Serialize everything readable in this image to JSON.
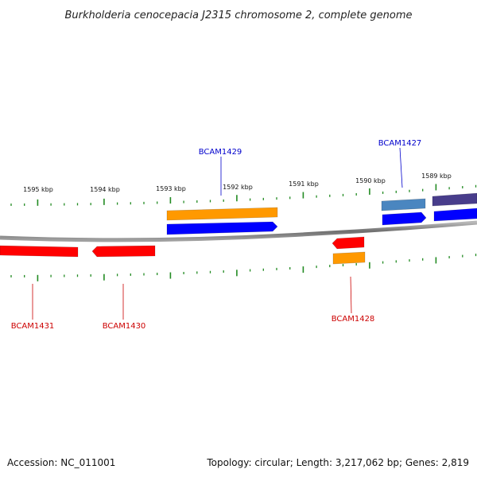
{
  "title": "Burkholderia cenocepacia J2315 chromosome 2, complete genome",
  "footer": {
    "accession": "Accession: NC_011001",
    "summary": "Topology: circular; Length: 3,217,062 bp; Genes: 2,819"
  },
  "colors": {
    "backbone": "#8c8c8c",
    "tick": "#228B22",
    "label_forward": "#0000cc",
    "label_reverse": "#cc0000",
    "cds_forward": "#0000ff",
    "cds_reverse": "#ff0000",
    "orange": "#ff9900",
    "steelblue": "#4a86c0",
    "slateblue": "#483d8b"
  },
  "ruler": {
    "labels": [
      "1595 kbp",
      "1594 kbp",
      "1593 kbp",
      "1592 kbp",
      "1591 kbp",
      "1590 kbp",
      "1589 kbp"
    ]
  },
  "gene_labels": [
    {
      "name": "BCAM1429",
      "strand": "forward"
    },
    {
      "name": "BCAM1427",
      "strand": "forward"
    },
    {
      "name": "BCAM1431",
      "strand": "reverse"
    },
    {
      "name": "BCAM1430",
      "strand": "reverse"
    },
    {
      "name": "BCAM1428",
      "strand": "reverse"
    }
  ],
  "features": [
    {
      "id": "orange-feature-top",
      "color": "orange",
      "strand": "none"
    },
    {
      "id": "cds-bcam1429",
      "color": "cds_forward",
      "strand": "forward"
    },
    {
      "id": "steelblue-feature",
      "color": "steelblue",
      "strand": "none"
    },
    {
      "id": "slateblue-feature",
      "color": "slateblue",
      "strand": "none"
    },
    {
      "id": "cds-bcam1427",
      "color": "cds_forward",
      "strand": "forward"
    },
    {
      "id": "cds-right-edge",
      "color": "cds_forward",
      "strand": "none"
    },
    {
      "id": "cds-bcam1431",
      "color": "cds_reverse",
      "strand": "none"
    },
    {
      "id": "cds-bcam1430",
      "color": "cds_reverse",
      "strand": "reverse"
    },
    {
      "id": "cds-bcam1428",
      "color": "cds_reverse",
      "strand": "reverse"
    },
    {
      "id": "orange-feature-bottom",
      "color": "orange",
      "strand": "none"
    }
  ]
}
